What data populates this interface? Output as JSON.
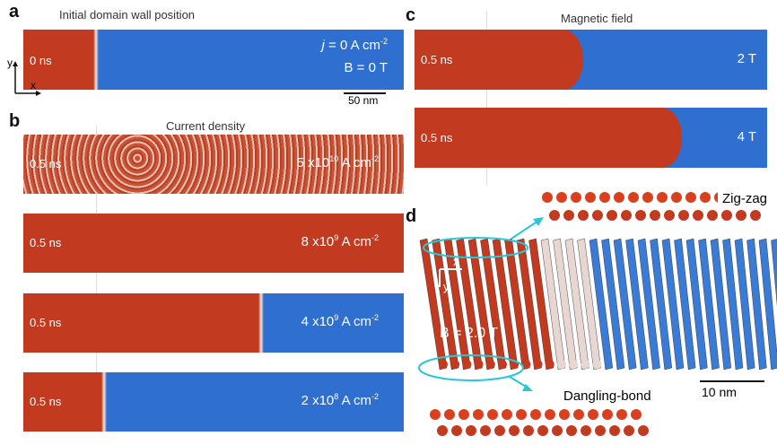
{
  "panel_a": {
    "label": "a",
    "title": "Initial domain wall position",
    "time": "0 ns",
    "current": {
      "symbol": "j",
      "text": " = 0 A cm",
      "exponent": "-2"
    },
    "field": "B = 0 T",
    "scale_bar": "50 nm",
    "axis_y": "y",
    "axis_x": "x"
  },
  "panel_b": {
    "label": "b",
    "title": "Current density",
    "rows": [
      {
        "time": "0.5 ns",
        "mantissa": "5 x10",
        "exponent": "10",
        "unit": " A cm",
        "unit_exponent": "-2"
      },
      {
        "time": "0.5 ns",
        "mantissa": "8 x10",
        "exponent": "9",
        "unit": " A cm",
        "unit_exponent": "-2"
      },
      {
        "time": "0.5 ns",
        "mantissa": "4 x10",
        "exponent": "9",
        "unit": " A cm",
        "unit_exponent": "-2"
      },
      {
        "time": "0.5 ns",
        "mantissa": "2 x10",
        "exponent": "8",
        "unit": " A cm",
        "unit_exponent": "-2"
      }
    ]
  },
  "panel_c": {
    "label": "c",
    "title": "Magnetic field",
    "rows": [
      {
        "time": "0.5 ns",
        "field": "2 T"
      },
      {
        "time": "0.5 ns",
        "field": "4 T"
      }
    ]
  },
  "panel_d": {
    "label": "d",
    "top_inset": "Zig-zag",
    "bottom_inset": "Dangling-bond",
    "axis_x": "x",
    "axis_y": "y",
    "field": "B = 2.0 T",
    "scale_bar": "10 nm"
  }
}
